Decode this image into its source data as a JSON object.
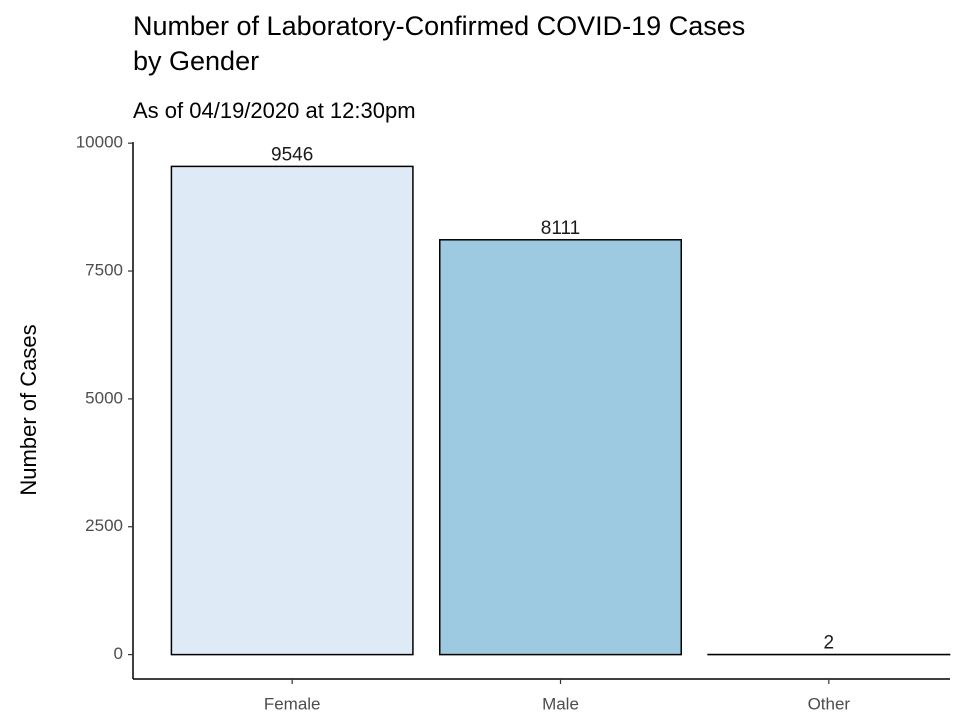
{
  "chart_data": {
    "type": "bar",
    "title": [
      "Number of Laboratory-Confirmed COVID-19 Cases",
      "by Gender"
    ],
    "subtitle": "As of 04/19/2020 at 12:30pm",
    "y_label": "Number of Cases",
    "categories": [
      "Female",
      "Male",
      "Other"
    ],
    "values": [
      9546,
      8111,
      2
    ],
    "colors": [
      "#deebf7",
      "#9ecae1",
      "#3182bd"
    ],
    "ylim": [
      -477,
      10023
    ],
    "yticks": [
      0,
      2500,
      5000,
      7500,
      10000
    ],
    "grid": false
  }
}
